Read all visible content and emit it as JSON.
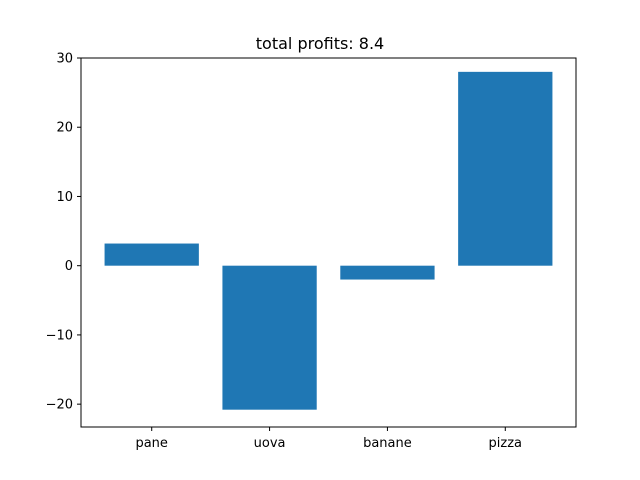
{
  "chart_data": {
    "type": "bar",
    "title": "total profits: 8.4",
    "xlabel": "",
    "ylabel": "",
    "categories": [
      "pane",
      "uova",
      "banane",
      "pizza"
    ],
    "values": [
      3.2,
      -20.8,
      -2.0,
      28.0
    ],
    "ylim": [
      -23.3,
      30.0
    ],
    "yticks": [
      -20,
      -10,
      0,
      10,
      20,
      30
    ],
    "ytick_labels": [
      "−20",
      "−10",
      "0",
      "10",
      "20",
      "30"
    ],
    "grid": false,
    "legend": "none",
    "bar_color": "#1f77b4"
  }
}
